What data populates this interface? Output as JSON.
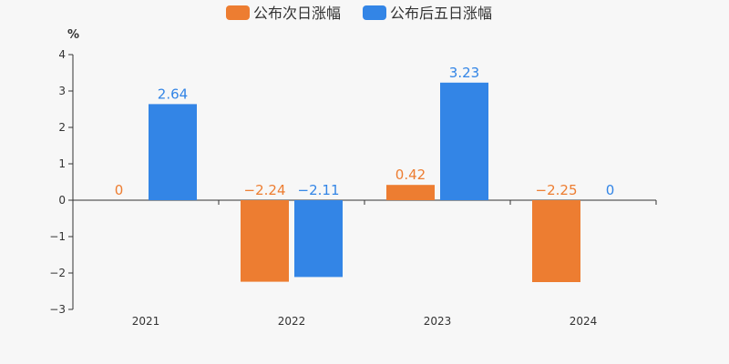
{
  "chart_data": {
    "type": "bar",
    "categories": [
      "2021",
      "2022",
      "2023",
      "2024"
    ],
    "series": [
      {
        "name": "公布次日涨幅",
        "values": [
          0,
          -2.24,
          0.42,
          -2.25
        ],
        "color": "#ed7d31",
        "labels": [
          "0",
          "−2.24",
          "0.42",
          "−2.25"
        ]
      },
      {
        "name": "公布后五日涨幅",
        "values": [
          2.64,
          -2.11,
          3.23,
          0
        ],
        "color": "#3385e6",
        "labels": [
          "2.64",
          "−2.11",
          "3.23",
          "0"
        ]
      }
    ],
    "ylabel": "%",
    "ylim": [
      -3,
      4
    ],
    "yticks": [
      4,
      3,
      2,
      1,
      0,
      -1,
      -2,
      -3
    ],
    "ytick_labels": [
      "4",
      "3",
      "2",
      "1",
      "0",
      "−1",
      "−2",
      "−3"
    ],
    "legend_position": "top-center",
    "grid": false
  }
}
